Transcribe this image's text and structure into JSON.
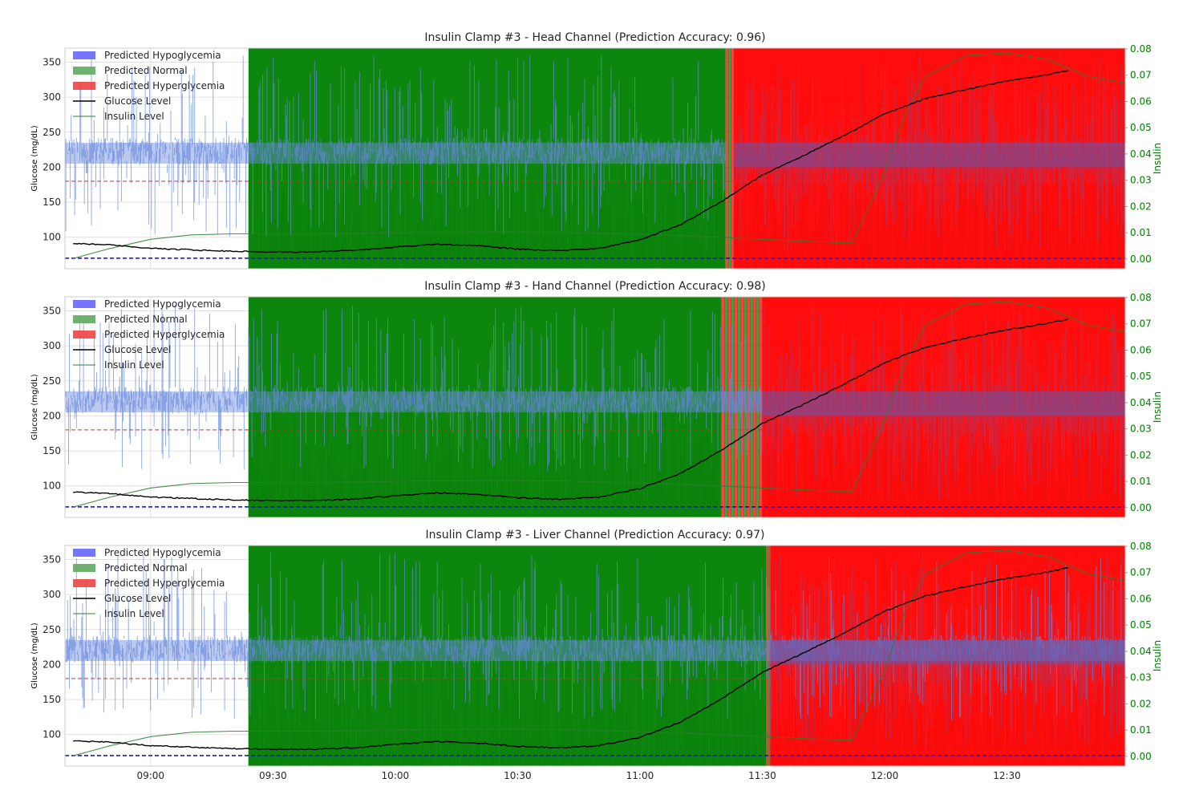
{
  "chart_data": [
    {
      "type": "line",
      "title": "Insulin Clamp #3 - Head Channel (Prediction Accuracy: 0.96)",
      "ylabel": "Glucose (mg/dL)",
      "ylabel_right": "Insulin",
      "xlim": [
        "08:39",
        "12:59"
      ],
      "ylim": [
        55,
        370
      ],
      "ylim_right": [
        -0.0037,
        0.0803
      ],
      "x_ticks": [
        "09:00",
        "09:30",
        "10:00",
        "10:30",
        "11:00",
        "11:30",
        "12:00",
        "12:30"
      ],
      "y_ticks": [
        100,
        150,
        200,
        250,
        300,
        350
      ],
      "y_ticks_right": [
        "0.00",
        "0.01",
        "0.02",
        "0.03",
        "0.04",
        "0.05",
        "0.06",
        "0.07",
        "0.08"
      ],
      "thresholds": {
        "hypo": 70,
        "hyper": 180
      },
      "prediction_segments": [
        {
          "start": "09:24",
          "end": "11:21",
          "class": "Normal"
        },
        {
          "start": "11:21",
          "end": "11:23",
          "class": "Mixed"
        },
        {
          "start": "11:23",
          "end": "12:59",
          "class": "Hyperglycemia"
        }
      ],
      "signal_band": {
        "start": "08:39",
        "end": "11:21",
        "low": 100,
        "high": 360
      },
      "legend": [
        "Predicted Hypoglycemia",
        "Predicted Normal",
        "Predicted Hyperglycemia",
        "Glucose Level",
        "Insulin Level"
      ],
      "legend_position": "upper left",
      "series": [
        {
          "name": "Glucose Level",
          "x": [
            "08:41",
            "08:50",
            "09:00",
            "09:10",
            "09:20",
            "09:30",
            "09:40",
            "09:50",
            "10:00",
            "10:10",
            "10:20",
            "10:30",
            "10:40",
            "10:50",
            "11:00",
            "11:10",
            "11:20",
            "11:30",
            "11:40",
            "11:50",
            "12:00",
            "12:10",
            "12:20",
            "12:30",
            "12:40",
            "12:45"
          ],
          "y": [
            91,
            89,
            84,
            82,
            80,
            79,
            79,
            81,
            86,
            90,
            88,
            83,
            81,
            84,
            96,
            118,
            151,
            189,
            216,
            245,
            276,
            298,
            311,
            323,
            332,
            338
          ]
        },
        {
          "name": "Insulin Level",
          "x": [
            "08:41",
            "08:50",
            "09:00",
            "09:10",
            "09:20",
            "09:30",
            "09:40",
            "09:50",
            "10:00",
            "10:10",
            "10:20",
            "10:30",
            "10:40",
            "10:50",
            "11:00",
            "11:10",
            "11:20",
            "11:30",
            "11:40",
            "11:50",
            "11:52",
            "12:00",
            "12:05",
            "12:10",
            "12:20",
            "12:30",
            "12:40",
            "12:50",
            "12:59"
          ],
          "y": [
            0.0002,
            0.004,
            0.0075,
            0.0092,
            0.0096,
            0.0096,
            0.0096,
            0.0097,
            0.01,
            0.0102,
            0.0103,
            0.0103,
            0.0102,
            0.0098,
            0.0094,
            0.0089,
            0.0082,
            0.0075,
            0.0068,
            0.0062,
            0.0061,
            0.033,
            0.055,
            0.0695,
            0.0775,
            0.0785,
            0.076,
            0.0695,
            0.067
          ]
        }
      ]
    },
    {
      "type": "line",
      "title": "Insulin Clamp #3 - Hand Channel (Prediction Accuracy: 0.98)",
      "ylabel": "Glucose (mg/dL)",
      "ylabel_right": "Insulin",
      "xlim": [
        "08:39",
        "12:59"
      ],
      "ylim": [
        55,
        370
      ],
      "ylim_right": [
        -0.0037,
        0.0803
      ],
      "x_ticks": [
        "09:00",
        "09:30",
        "10:00",
        "10:30",
        "11:00",
        "11:30",
        "12:00",
        "12:30"
      ],
      "y_ticks": [
        100,
        150,
        200,
        250,
        300,
        350
      ],
      "y_ticks_right": [
        "0.00",
        "0.01",
        "0.02",
        "0.03",
        "0.04",
        "0.05",
        "0.06",
        "0.07",
        "0.08"
      ],
      "thresholds": {
        "hypo": 70,
        "hyper": 180
      },
      "prediction_segments": [
        {
          "start": "09:24",
          "end": "11:20",
          "class": "Normal"
        },
        {
          "start": "11:20",
          "end": "11:30",
          "class": "Mixed"
        },
        {
          "start": "11:30",
          "end": "12:59",
          "class": "Hyperglycemia"
        }
      ],
      "signal_band": {
        "start": "08:39",
        "end": "11:30",
        "low": 120,
        "high": 360
      },
      "legend": [
        "Predicted Hypoglycemia",
        "Predicted Normal",
        "Predicted Hyperglycemia",
        "Glucose Level",
        "Insulin Level"
      ],
      "legend_position": "upper left",
      "series": [
        {
          "name": "Glucose Level",
          "x": [
            "08:41",
            "08:50",
            "09:00",
            "09:10",
            "09:20",
            "09:30",
            "09:40",
            "09:50",
            "10:00",
            "10:10",
            "10:20",
            "10:30",
            "10:40",
            "10:50",
            "11:00",
            "11:10",
            "11:20",
            "11:30",
            "11:40",
            "11:50",
            "12:00",
            "12:10",
            "12:20",
            "12:30",
            "12:40",
            "12:45"
          ],
          "y": [
            91,
            89,
            84,
            82,
            80,
            79,
            79,
            81,
            86,
            90,
            88,
            83,
            81,
            84,
            96,
            118,
            151,
            189,
            216,
            245,
            276,
            298,
            311,
            323,
            332,
            338
          ]
        },
        {
          "name": "Insulin Level",
          "x": [
            "08:41",
            "08:50",
            "09:00",
            "09:10",
            "09:20",
            "09:30",
            "09:40",
            "09:50",
            "10:00",
            "10:10",
            "10:20",
            "10:30",
            "10:40",
            "10:50",
            "11:00",
            "11:10",
            "11:20",
            "11:30",
            "11:40",
            "11:50",
            "11:52",
            "12:00",
            "12:05",
            "12:10",
            "12:20",
            "12:30",
            "12:40",
            "12:50",
            "12:59"
          ],
          "y": [
            0.0002,
            0.004,
            0.0075,
            0.0092,
            0.0096,
            0.0096,
            0.0096,
            0.0097,
            0.01,
            0.0102,
            0.0103,
            0.0103,
            0.0102,
            0.0098,
            0.0094,
            0.0089,
            0.0082,
            0.0075,
            0.0068,
            0.0062,
            0.0061,
            0.033,
            0.055,
            0.0695,
            0.0775,
            0.0785,
            0.076,
            0.0695,
            0.067
          ]
        }
      ]
    },
    {
      "type": "line",
      "title": "Insulin Clamp #3 - Liver Channel (Prediction Accuracy: 0.97)",
      "ylabel": "Glucose (mg/dL)",
      "ylabel_right": "Insulin",
      "xlim": [
        "08:39",
        "12:59"
      ],
      "ylim": [
        55,
        370
      ],
      "ylim_right": [
        -0.0037,
        0.0803
      ],
      "x_ticks": [
        "09:00",
        "09:30",
        "10:00",
        "10:30",
        "11:00",
        "11:30",
        "12:00",
        "12:30"
      ],
      "y_ticks": [
        100,
        150,
        200,
        250,
        300,
        350
      ],
      "y_ticks_right": [
        "0.00",
        "0.01",
        "0.02",
        "0.03",
        "0.04",
        "0.05",
        "0.06",
        "0.07",
        "0.08"
      ],
      "thresholds": {
        "hypo": 70,
        "hyper": 180
      },
      "prediction_segments": [
        {
          "start": "09:24",
          "end": "11:31",
          "class": "Normal"
        },
        {
          "start": "11:31",
          "end": "11:32",
          "class": "Mixed"
        },
        {
          "start": "11:32",
          "end": "12:59",
          "class": "Hyperglycemia"
        }
      ],
      "signal_band": {
        "start": "08:39",
        "end": "12:59",
        "low": 120,
        "high": 360
      },
      "legend": [
        "Predicted Hypoglycemia",
        "Predicted Normal",
        "Predicted Hyperglycemia",
        "Glucose Level",
        "Insulin Level"
      ],
      "legend_position": "upper left",
      "series": [
        {
          "name": "Glucose Level",
          "x": [
            "08:41",
            "08:50",
            "09:00",
            "09:10",
            "09:20",
            "09:30",
            "09:40",
            "09:50",
            "10:00",
            "10:10",
            "10:20",
            "10:30",
            "10:40",
            "10:50",
            "11:00",
            "11:10",
            "11:20",
            "11:30",
            "11:40",
            "11:50",
            "12:00",
            "12:10",
            "12:20",
            "12:30",
            "12:40",
            "12:45"
          ],
          "y": [
            91,
            89,
            84,
            82,
            80,
            79,
            79,
            81,
            86,
            90,
            88,
            83,
            81,
            84,
            96,
            118,
            151,
            189,
            216,
            245,
            276,
            298,
            311,
            323,
            332,
            338
          ]
        },
        {
          "name": "Insulin Level",
          "x": [
            "08:41",
            "08:50",
            "09:00",
            "09:10",
            "09:20",
            "09:30",
            "09:40",
            "09:50",
            "10:00",
            "10:10",
            "10:20",
            "10:30",
            "10:40",
            "10:50",
            "11:00",
            "11:10",
            "11:20",
            "11:30",
            "11:40",
            "11:50",
            "11:52",
            "12:00",
            "12:05",
            "12:10",
            "12:20",
            "12:30",
            "12:40",
            "12:50",
            "12:59"
          ],
          "y": [
            0.0002,
            0.004,
            0.0075,
            0.0092,
            0.0096,
            0.0096,
            0.0096,
            0.0097,
            0.01,
            0.0102,
            0.0103,
            0.0103,
            0.0102,
            0.0098,
            0.0094,
            0.0089,
            0.0082,
            0.0075,
            0.0068,
            0.0062,
            0.0061,
            0.033,
            0.055,
            0.0695,
            0.0775,
            0.0785,
            0.076,
            0.0695,
            0.067
          ]
        }
      ]
    }
  ],
  "colors": {
    "Normal": "#008000",
    "Hyperglycemia": "#ff0000",
    "Hypoglycemia": "#6666ff",
    "signal": "#6688dd",
    "glucose": "#000000",
    "insulin": "#2e7d32",
    "hypo_line": "#0000ff",
    "hyper_line": "#cc3333",
    "right_axis": "#008000"
  }
}
